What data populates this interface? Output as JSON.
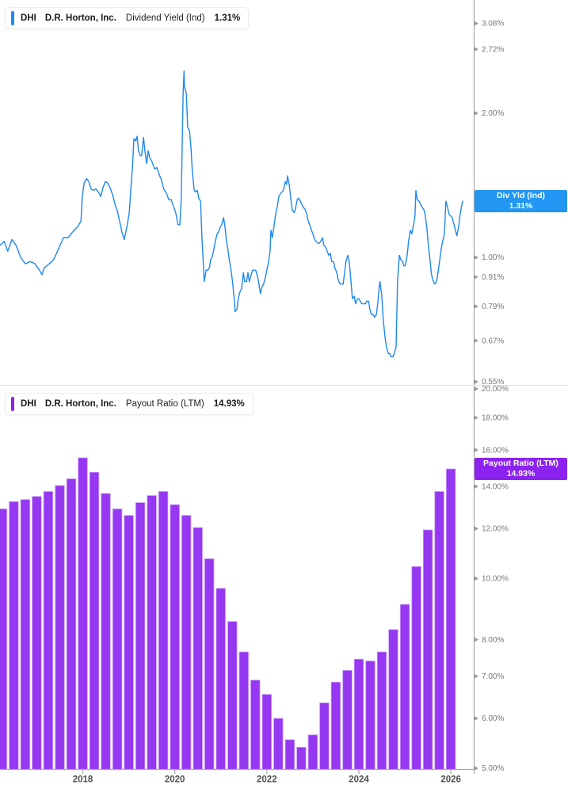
{
  "app": {
    "background": "#ffffff",
    "axis_color": "#a8a8a8",
    "tick_text_color": "#787878",
    "year_text_color": "#4d4d4d"
  },
  "panels": [
    {
      "id": "dividend-yield",
      "legend": {
        "ticker": "DHI",
        "company": "D.R. Horton, Inc.",
        "metric": "Dividend Yield (Ind)",
        "value": "1.31%",
        "accent": "#2188f2"
      },
      "badge": {
        "line1": "Div Yld (Ind)",
        "line2": "1.31%",
        "bg": "#2196f3"
      },
      "y_tick_labels": [
        "3.08%",
        "2.72%",
        "2.00%",
        "1.00%",
        "0.91%",
        "0.79%",
        "0.67%",
        "0.55%"
      ],
      "line_color": "#1e87f0"
    },
    {
      "id": "payout-ratio",
      "legend": {
        "ticker": "DHI",
        "company": "D.R. Horton, Inc.",
        "metric": "Payout Ratio (LTM)",
        "value": "14.93%",
        "accent": "#8b22f0"
      },
      "badge": {
        "line1": "Payout Ratio (LTM)",
        "line2": "14.93%",
        "bg": "#8b22f0"
      },
      "y_tick_labels": [
        "20.00%",
        "18.00%",
        "16.00%",
        "14.00%",
        "12.00%",
        "10.00%",
        "8.00%",
        "7.00%",
        "6.00%",
        "5.00%"
      ],
      "x_tick_labels": [
        "2018",
        "2020",
        "2022",
        "2024",
        "2026"
      ],
      "bar_fill": "#9637f1",
      "bar_edge": "#cc9ef8"
    }
  ],
  "chart_data": [
    {
      "type": "line",
      "title": "DHI D.R. Horton, Inc. Dividend Yield (Ind)",
      "series_name": "Dividend Yield (Ind)",
      "unit": "%",
      "current_value": 1.31,
      "y_scale": "log",
      "grid": false,
      "legend_position": "top-left",
      "axis_position": "right",
      "x_range": [
        2016.2,
        2026.3
      ],
      "y_ticks": [
        3.08,
        2.72,
        2.0,
        1.0,
        0.91,
        0.79,
        0.67,
        0.55
      ],
      "points": [
        [
          2016.2,
          1.06
        ],
        [
          2016.29,
          1.08
        ],
        [
          2016.37,
          1.03
        ],
        [
          2016.46,
          1.09
        ],
        [
          2016.55,
          1.06
        ],
        [
          2016.65,
          1.0
        ],
        [
          2016.75,
          0.97
        ],
        [
          2016.86,
          0.98
        ],
        [
          2016.96,
          0.97
        ],
        [
          2017.06,
          0.94
        ],
        [
          2017.11,
          0.92
        ],
        [
          2017.16,
          0.95
        ],
        [
          2017.27,
          0.97
        ],
        [
          2017.37,
          0.99
        ],
        [
          2017.47,
          1.04
        ],
        [
          2017.58,
          1.1
        ],
        [
          2017.68,
          1.1
        ],
        [
          2017.78,
          1.13
        ],
        [
          2017.89,
          1.16
        ],
        [
          2017.96,
          1.19
        ],
        [
          2017.99,
          1.34
        ],
        [
          2018.03,
          1.43
        ],
        [
          2018.08,
          1.46
        ],
        [
          2018.13,
          1.44
        ],
        [
          2018.18,
          1.39
        ],
        [
          2018.23,
          1.38
        ],
        [
          2018.28,
          1.39
        ],
        [
          2018.34,
          1.37
        ],
        [
          2018.39,
          1.34
        ],
        [
          2018.44,
          1.4
        ],
        [
          2018.49,
          1.44
        ],
        [
          2018.54,
          1.43
        ],
        [
          2018.59,
          1.4
        ],
        [
          2018.65,
          1.35
        ],
        [
          2018.7,
          1.29
        ],
        [
          2018.75,
          1.25
        ],
        [
          2018.8,
          1.19
        ],
        [
          2018.85,
          1.13
        ],
        [
          2018.9,
          1.09
        ],
        [
          2018.96,
          1.16
        ],
        [
          2019.01,
          1.24
        ],
        [
          2019.04,
          1.37
        ],
        [
          2019.08,
          1.54
        ],
        [
          2019.11,
          1.77
        ],
        [
          2019.15,
          1.75
        ],
        [
          2019.18,
          1.79
        ],
        [
          2019.21,
          1.67
        ],
        [
          2019.25,
          1.63
        ],
        [
          2019.28,
          1.63
        ],
        [
          2019.32,
          1.78
        ],
        [
          2019.35,
          1.67
        ],
        [
          2019.39,
          1.57
        ],
        [
          2019.42,
          1.67
        ],
        [
          2019.45,
          1.62
        ],
        [
          2019.51,
          1.58
        ],
        [
          2019.56,
          1.53
        ],
        [
          2019.61,
          1.54
        ],
        [
          2019.66,
          1.49
        ],
        [
          2019.71,
          1.45
        ],
        [
          2019.76,
          1.39
        ],
        [
          2019.82,
          1.36
        ],
        [
          2019.87,
          1.32
        ],
        [
          2019.92,
          1.32
        ],
        [
          2019.97,
          1.28
        ],
        [
          2020.02,
          1.24
        ],
        [
          2020.07,
          1.17
        ],
        [
          2020.11,
          1.17
        ],
        [
          2020.14,
          1.33
        ],
        [
          2020.18,
          2.18
        ],
        [
          2020.2,
          2.45
        ],
        [
          2020.21,
          2.27
        ],
        [
          2020.25,
          2.2
        ],
        [
          2020.28,
          1.87
        ],
        [
          2020.32,
          1.84
        ],
        [
          2020.35,
          1.7
        ],
        [
          2020.38,
          1.52
        ],
        [
          2020.42,
          1.38
        ],
        [
          2020.45,
          1.37
        ],
        [
          2020.49,
          1.38
        ],
        [
          2020.52,
          1.33
        ],
        [
          2020.56,
          1.31
        ],
        [
          2020.59,
          1.1
        ],
        [
          2020.63,
          0.93
        ],
        [
          2020.64,
          0.89
        ],
        [
          2020.68,
          0.94
        ],
        [
          2020.71,
          0.94
        ],
        [
          2020.75,
          0.95
        ],
        [
          2020.78,
          0.99
        ],
        [
          2020.81,
          1.0
        ],
        [
          2020.85,
          1.04
        ],
        [
          2020.88,
          1.08
        ],
        [
          2020.92,
          1.12
        ],
        [
          2020.95,
          1.13
        ],
        [
          2020.99,
          1.16
        ],
        [
          2021.02,
          1.17
        ],
        [
          2021.06,
          1.21
        ],
        [
          2021.09,
          1.16
        ],
        [
          2021.12,
          1.09
        ],
        [
          2021.16,
          1.03
        ],
        [
          2021.19,
          0.98
        ],
        [
          2021.23,
          0.93
        ],
        [
          2021.26,
          0.88
        ],
        [
          2021.3,
          0.8
        ],
        [
          2021.31,
          0.77
        ],
        [
          2021.35,
          0.78
        ],
        [
          2021.38,
          0.82
        ],
        [
          2021.42,
          0.85
        ],
        [
          2021.45,
          0.86
        ],
        [
          2021.49,
          0.93
        ],
        [
          2021.52,
          0.89
        ],
        [
          2021.56,
          0.89
        ],
        [
          2021.59,
          0.93
        ],
        [
          2021.62,
          0.89
        ],
        [
          2021.66,
          0.92
        ],
        [
          2021.69,
          0.94
        ],
        [
          2021.73,
          0.94
        ],
        [
          2021.76,
          0.94
        ],
        [
          2021.8,
          0.91
        ],
        [
          2021.83,
          0.88
        ],
        [
          2021.86,
          0.84
        ],
        [
          2021.9,
          0.87
        ],
        [
          2021.93,
          0.88
        ],
        [
          2021.97,
          0.91
        ],
        [
          2022.0,
          0.94
        ],
        [
          2022.04,
          0.98
        ],
        [
          2022.07,
          1.03
        ],
        [
          2022.09,
          1.14
        ],
        [
          2022.12,
          1.1
        ],
        [
          2022.16,
          1.17
        ],
        [
          2022.19,
          1.23
        ],
        [
          2022.23,
          1.28
        ],
        [
          2022.26,
          1.34
        ],
        [
          2022.3,
          1.36
        ],
        [
          2022.33,
          1.37
        ],
        [
          2022.36,
          1.38
        ],
        [
          2022.4,
          1.44
        ],
        [
          2022.43,
          1.42
        ],
        [
          2022.45,
          1.48
        ],
        [
          2022.49,
          1.41
        ],
        [
          2022.52,
          1.33
        ],
        [
          2022.55,
          1.26
        ],
        [
          2022.59,
          1.24
        ],
        [
          2022.62,
          1.26
        ],
        [
          2022.66,
          1.32
        ],
        [
          2022.69,
          1.33
        ],
        [
          2022.73,
          1.31
        ],
        [
          2022.76,
          1.29
        ],
        [
          2022.8,
          1.27
        ],
        [
          2022.83,
          1.26
        ],
        [
          2022.86,
          1.24
        ],
        [
          2022.9,
          1.19
        ],
        [
          2022.93,
          1.17
        ],
        [
          2022.97,
          1.14
        ],
        [
          2023.0,
          1.12
        ],
        [
          2023.04,
          1.09
        ],
        [
          2023.07,
          1.08
        ],
        [
          2023.11,
          1.07
        ],
        [
          2023.14,
          1.07
        ],
        [
          2023.17,
          1.08
        ],
        [
          2023.21,
          1.1
        ],
        [
          2023.24,
          1.06
        ],
        [
          2023.28,
          1.05
        ],
        [
          2023.31,
          1.03
        ],
        [
          2023.35,
          1.01
        ],
        [
          2023.38,
          1.02
        ],
        [
          2023.41,
          0.98
        ],
        [
          2023.45,
          0.98
        ],
        [
          2023.48,
          0.95
        ],
        [
          2023.52,
          0.93
        ],
        [
          2023.55,
          0.9
        ],
        [
          2023.59,
          0.88
        ],
        [
          2023.62,
          0.88
        ],
        [
          2023.66,
          0.88
        ],
        [
          2023.69,
          0.93
        ],
        [
          2023.72,
          0.98
        ],
        [
          2023.76,
          1.01
        ],
        [
          2023.79,
          0.98
        ],
        [
          2023.83,
          0.89
        ],
        [
          2023.86,
          0.82
        ],
        [
          2023.9,
          0.83
        ],
        [
          2023.93,
          0.8
        ],
        [
          2023.97,
          0.82
        ],
        [
          2024.0,
          0.82
        ],
        [
          2024.03,
          0.81
        ],
        [
          2024.07,
          0.8
        ],
        [
          2024.1,
          0.8
        ],
        [
          2024.14,
          0.8
        ],
        [
          2024.17,
          0.81
        ],
        [
          2024.21,
          0.81
        ],
        [
          2024.24,
          0.78
        ],
        [
          2024.27,
          0.76
        ],
        [
          2024.31,
          0.76
        ],
        [
          2024.34,
          0.75
        ],
        [
          2024.38,
          0.76
        ],
        [
          2024.41,
          0.8
        ],
        [
          2024.45,
          0.88
        ],
        [
          2024.46,
          0.89
        ],
        [
          2024.5,
          0.83
        ],
        [
          2024.53,
          0.74
        ],
        [
          2024.57,
          0.68
        ],
        [
          2024.6,
          0.65
        ],
        [
          2024.64,
          0.63
        ],
        [
          2024.67,
          0.63
        ],
        [
          2024.7,
          0.62
        ],
        [
          2024.74,
          0.62
        ],
        [
          2024.77,
          0.63
        ],
        [
          2024.81,
          0.65
        ],
        [
          2024.84,
          0.89
        ],
        [
          2024.88,
          1.01
        ],
        [
          2024.91,
          0.99
        ],
        [
          2024.95,
          0.98
        ],
        [
          2024.98,
          0.96
        ],
        [
          2025.01,
          0.96
        ],
        [
          2025.05,
          1.01
        ],
        [
          2025.08,
          1.08
        ],
        [
          2025.12,
          1.14
        ],
        [
          2025.15,
          1.12
        ],
        [
          2025.19,
          1.17
        ],
        [
          2025.22,
          1.22
        ],
        [
          2025.24,
          1.38
        ],
        [
          2025.27,
          1.32
        ],
        [
          2025.31,
          1.31
        ],
        [
          2025.34,
          1.29
        ],
        [
          2025.38,
          1.27
        ],
        [
          2025.41,
          1.26
        ],
        [
          2025.44,
          1.23
        ],
        [
          2025.48,
          1.15
        ],
        [
          2025.51,
          1.06
        ],
        [
          2025.55,
          0.98
        ],
        [
          2025.58,
          0.92
        ],
        [
          2025.62,
          0.89
        ],
        [
          2025.65,
          0.88
        ],
        [
          2025.69,
          0.89
        ],
        [
          2025.72,
          0.93
        ],
        [
          2025.76,
          0.99
        ],
        [
          2025.79,
          1.04
        ],
        [
          2025.82,
          1.08
        ],
        [
          2025.86,
          1.12
        ],
        [
          2025.89,
          1.31
        ],
        [
          2025.93,
          1.27
        ],
        [
          2025.96,
          1.23
        ],
        [
          2026.0,
          1.22
        ],
        [
          2026.03,
          1.21
        ],
        [
          2026.07,
          1.17
        ],
        [
          2026.1,
          1.14
        ],
        [
          2026.13,
          1.11
        ],
        [
          2026.17,
          1.16
        ],
        [
          2026.2,
          1.23
        ],
        [
          2026.24,
          1.29
        ],
        [
          2026.26,
          1.31
        ]
      ]
    },
    {
      "type": "bar",
      "title": "DHI D.R. Horton, Inc. Payout Ratio (LTM)",
      "series_name": "Payout Ratio (LTM)",
      "unit": "%",
      "current_value": 14.93,
      "y_scale": "log",
      "grid": false,
      "axis_position": "right",
      "x_range": [
        2016.2,
        2026.3
      ],
      "y_ticks": [
        20,
        18,
        16,
        14,
        12,
        10,
        8,
        7,
        6,
        5
      ],
      "x_ticks": [
        2018,
        2020,
        2022,
        2024,
        2026
      ],
      "baseline": 5,
      "points": [
        [
          2016.25,
          12.9
        ],
        [
          2016.5,
          13.25
        ],
        [
          2016.75,
          13.35
        ],
        [
          2017.0,
          13.5
        ],
        [
          2017.25,
          13.75
        ],
        [
          2017.5,
          14.05
        ],
        [
          2017.75,
          14.4
        ],
        [
          2018.0,
          15.55
        ],
        [
          2018.25,
          14.75
        ],
        [
          2018.5,
          13.65
        ],
        [
          2018.75,
          12.9
        ],
        [
          2019.0,
          12.6
        ],
        [
          2019.25,
          13.2
        ],
        [
          2019.5,
          13.55
        ],
        [
          2019.75,
          13.75
        ],
        [
          2020.0,
          13.1
        ],
        [
          2020.25,
          12.6
        ],
        [
          2020.5,
          12.05
        ],
        [
          2020.75,
          10.75
        ],
        [
          2021.0,
          9.65
        ],
        [
          2021.25,
          8.55
        ],
        [
          2021.5,
          7.65
        ],
        [
          2021.75,
          6.9
        ],
        [
          2022.0,
          6.55
        ],
        [
          2022.25,
          6.0
        ],
        [
          2022.5,
          5.55
        ],
        [
          2022.75,
          5.4
        ],
        [
          2023.0,
          5.65
        ],
        [
          2023.25,
          6.35
        ],
        [
          2023.5,
          6.85
        ],
        [
          2023.75,
          7.15
        ],
        [
          2024.0,
          7.45
        ],
        [
          2024.25,
          7.4
        ],
        [
          2024.5,
          7.65
        ],
        [
          2024.75,
          8.3
        ],
        [
          2025.0,
          9.1
        ],
        [
          2025.25,
          10.45
        ],
        [
          2025.5,
          11.95
        ],
        [
          2025.75,
          13.75
        ],
        [
          2026.0,
          14.93
        ]
      ]
    }
  ]
}
